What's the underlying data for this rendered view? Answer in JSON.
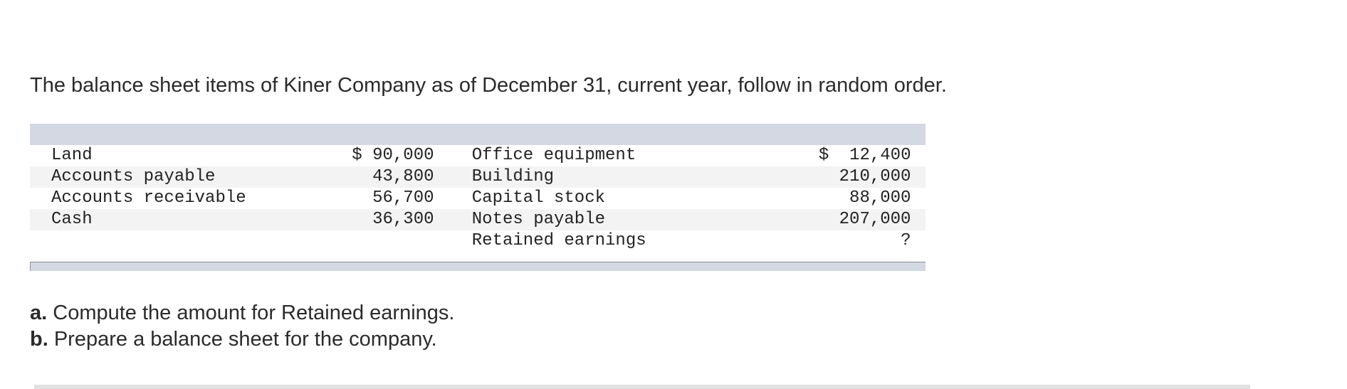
{
  "intro_text": "The balance sheet items of Kiner Company as of December 31, current year, follow in random order.",
  "items_table": {
    "rows": [
      {
        "left_label": "Land",
        "left_value": "$ 90,000",
        "right_label": "Office equipment",
        "right_value": "$  12,400"
      },
      {
        "left_label": "Accounts payable",
        "left_value": "43,800",
        "right_label": "Building",
        "right_value": "210,000"
      },
      {
        "left_label": "Accounts receivable",
        "left_value": "56,700",
        "right_label": "Capital stock",
        "right_value": "88,000"
      },
      {
        "left_label": "Cash",
        "left_value": "36,300",
        "right_label": "Notes payable",
        "right_value": "207,000"
      },
      {
        "left_label": "",
        "left_value": "",
        "right_label": "Retained earnings",
        "right_value": "?"
      }
    ]
  },
  "questions": [
    {
      "marker": "a.",
      "text": " Compute the amount for Retained earnings."
    },
    {
      "marker": "b.",
      "text": " Prepare a balance sheet for the company."
    }
  ]
}
